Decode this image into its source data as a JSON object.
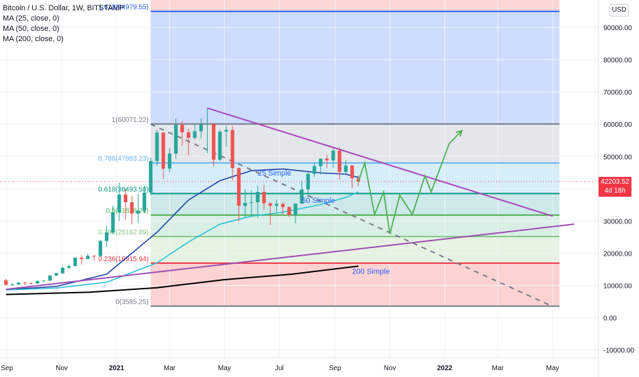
{
  "legend": {
    "symbol_line": "Bitcoin / U.S. Dollar, 1W, BITSTAMP",
    "ma1": "MA (25, close, 0)",
    "ma2": "MA (50, close, 0)",
    "ma3": "MA (200, close, 0)"
  },
  "currency_button": "USD",
  "last_price": {
    "value": "42203.52",
    "countdown": "4d 18h",
    "color": "#f23645"
  },
  "colors": {
    "up": "#26a69a",
    "down": "#ef5350",
    "ma25": "#1f3ea6",
    "ma50": "#2cc0d6",
    "ma200": "#000000",
    "trend_purple": "#ab47bc",
    "projection_green": "#4caf50",
    "zone_blue": "#d6e2fd",
    "zone_red": "#fcdcdc",
    "level_top_blue": "#2962ff"
  },
  "chart_data": {
    "type": "candlestick",
    "title": "Bitcoin / U.S. Dollar, 1W, BITSTAMP",
    "y_axis": {
      "ticks": [
        90000,
        80000,
        70000,
        60000,
        50000,
        40000,
        30000,
        20000,
        10000,
        0,
        -10000
      ],
      "tick_labels": [
        "90000.00",
        "80000.00",
        "70000.00",
        "60000.00",
        "50000.00",
        "40000.00",
        "30000.00",
        "20000.00",
        "10000.00",
        "0.00",
        "-10000.00"
      ]
    },
    "x_axis": {
      "labels": [
        "Sep",
        "Nov",
        "2021",
        "Mar",
        "May",
        "Jul",
        "Sep",
        "Nov",
        "2022",
        "Mar",
        "May"
      ],
      "dates": [
        "2020-09-01",
        "2020-11-01",
        "2021-01-01",
        "2021-03-01",
        "2021-05-01",
        "2021-07-01",
        "2021-09-01",
        "2021-11-01",
        "2022-01-01",
        "2022-03-01",
        "2022-05-01"
      ],
      "bold": [
        "2021",
        "2022"
      ]
    },
    "candles": [
      {
        "date": "2020-08-31",
        "open": 11600,
        "high": 12000,
        "low": 9900,
        "close": 10200
      },
      {
        "date": "2020-09-07",
        "open": 10200,
        "high": 10800,
        "low": 9900,
        "close": 10300
      },
      {
        "date": "2020-09-14",
        "open": 10300,
        "high": 11100,
        "low": 10200,
        "close": 10900
      },
      {
        "date": "2020-09-21",
        "open": 10900,
        "high": 11100,
        "low": 10100,
        "close": 10700
      },
      {
        "date": "2020-09-28",
        "open": 10700,
        "high": 11000,
        "low": 10400,
        "close": 10600
      },
      {
        "date": "2020-10-05",
        "open": 10600,
        "high": 11500,
        "low": 10500,
        "close": 11400
      },
      {
        "date": "2020-10-12",
        "open": 11400,
        "high": 11700,
        "low": 11200,
        "close": 11500
      },
      {
        "date": "2020-10-19",
        "open": 11500,
        "high": 13200,
        "low": 11400,
        "close": 13100
      },
      {
        "date": "2020-10-26",
        "open": 13100,
        "high": 14000,
        "low": 12900,
        "close": 13800
      },
      {
        "date": "2020-11-02",
        "open": 13800,
        "high": 15900,
        "low": 13500,
        "close": 15500
      },
      {
        "date": "2020-11-09",
        "open": 15500,
        "high": 16400,
        "low": 15000,
        "close": 16000
      },
      {
        "date": "2020-11-16",
        "open": 16000,
        "high": 18800,
        "low": 15900,
        "close": 18600
      },
      {
        "date": "2020-11-23",
        "open": 18600,
        "high": 19400,
        "low": 16500,
        "close": 18200
      },
      {
        "date": "2020-11-30",
        "open": 18200,
        "high": 19900,
        "low": 18000,
        "close": 19200
      },
      {
        "date": "2020-12-07",
        "open": 19200,
        "high": 19400,
        "low": 17600,
        "close": 19100
      },
      {
        "date": "2020-12-14",
        "open": 19100,
        "high": 24200,
        "low": 19000,
        "close": 23800
      },
      {
        "date": "2020-12-21",
        "open": 23800,
        "high": 28400,
        "low": 21900,
        "close": 26400
      },
      {
        "date": "2020-12-28",
        "open": 26400,
        "high": 34800,
        "low": 26100,
        "close": 32700
      },
      {
        "date": "2021-01-04",
        "open": 32700,
        "high": 41900,
        "low": 30000,
        "close": 38200
      },
      {
        "date": "2021-01-11",
        "open": 38200,
        "high": 40100,
        "low": 30300,
        "close": 35800
      },
      {
        "date": "2021-01-18",
        "open": 35800,
        "high": 37800,
        "low": 28900,
        "close": 32300
      },
      {
        "date": "2021-01-25",
        "open": 32300,
        "high": 38500,
        "low": 29300,
        "close": 33200
      },
      {
        "date": "2021-02-01",
        "open": 33200,
        "high": 40900,
        "low": 32400,
        "close": 38800
      },
      {
        "date": "2021-02-08",
        "open": 38800,
        "high": 49700,
        "low": 37900,
        "close": 48600
      },
      {
        "date": "2021-02-15",
        "open": 48600,
        "high": 58300,
        "low": 47000,
        "close": 57400
      },
      {
        "date": "2021-02-22",
        "open": 57400,
        "high": 57500,
        "low": 43000,
        "close": 46200
      },
      {
        "date": "2021-03-01",
        "open": 46200,
        "high": 52600,
        "low": 45000,
        "close": 50900
      },
      {
        "date": "2021-03-08",
        "open": 50900,
        "high": 61700,
        "low": 49300,
        "close": 59800
      },
      {
        "date": "2021-03-15",
        "open": 59800,
        "high": 61000,
        "low": 53300,
        "close": 57500
      },
      {
        "date": "2021-03-22",
        "open": 57500,
        "high": 58600,
        "low": 50400,
        "close": 55800
      },
      {
        "date": "2021-03-29",
        "open": 55800,
        "high": 60200,
        "low": 55300,
        "close": 57800
      },
      {
        "date": "2021-04-05",
        "open": 57800,
        "high": 61800,
        "low": 55500,
        "close": 60000
      },
      {
        "date": "2021-04-12",
        "open": 60000,
        "high": 64900,
        "low": 51000,
        "close": 60100
      },
      {
        "date": "2021-04-19",
        "open": 60100,
        "high": 60500,
        "low": 47000,
        "close": 49000
      },
      {
        "date": "2021-04-26",
        "open": 49000,
        "high": 58400,
        "low": 48500,
        "close": 57700
      },
      {
        "date": "2021-05-03",
        "open": 57700,
        "high": 59600,
        "low": 53000,
        "close": 58200
      },
      {
        "date": "2021-05-10",
        "open": 58200,
        "high": 59500,
        "low": 42600,
        "close": 46400
      },
      {
        "date": "2021-05-17",
        "open": 46400,
        "high": 46600,
        "low": 30000,
        "close": 34700
      },
      {
        "date": "2021-05-24",
        "open": 34700,
        "high": 40000,
        "low": 31200,
        "close": 35600
      },
      {
        "date": "2021-05-31",
        "open": 35600,
        "high": 39500,
        "low": 31300,
        "close": 35800
      },
      {
        "date": "2021-06-07",
        "open": 35800,
        "high": 40900,
        "low": 31000,
        "close": 39000
      },
      {
        "date": "2021-06-14",
        "open": 39000,
        "high": 41300,
        "low": 33400,
        "close": 35500
      },
      {
        "date": "2021-06-21",
        "open": 35500,
        "high": 35700,
        "low": 28800,
        "close": 34700
      },
      {
        "date": "2021-06-28",
        "open": 34700,
        "high": 36500,
        "low": 32700,
        "close": 35300
      },
      {
        "date": "2021-07-05",
        "open": 35300,
        "high": 35800,
        "low": 32100,
        "close": 34300
      },
      {
        "date": "2021-07-12",
        "open": 34300,
        "high": 34500,
        "low": 31200,
        "close": 31800
      },
      {
        "date": "2021-07-19",
        "open": 31800,
        "high": 35400,
        "low": 29300,
        "close": 35400
      },
      {
        "date": "2021-07-26",
        "open": 35400,
        "high": 42600,
        "low": 35300,
        "close": 39800
      },
      {
        "date": "2021-08-02",
        "open": 39800,
        "high": 45300,
        "low": 37500,
        "close": 44600
      },
      {
        "date": "2021-08-09",
        "open": 44600,
        "high": 48100,
        "low": 43700,
        "close": 47000
      },
      {
        "date": "2021-08-16",
        "open": 47000,
        "high": 49300,
        "low": 44400,
        "close": 49300
      },
      {
        "date": "2021-08-23",
        "open": 49300,
        "high": 50500,
        "low": 46400,
        "close": 48800
      },
      {
        "date": "2021-08-30",
        "open": 48800,
        "high": 52900,
        "low": 46500,
        "close": 51800
      },
      {
        "date": "2021-09-06",
        "open": 51800,
        "high": 52800,
        "low": 42800,
        "close": 45200
      },
      {
        "date": "2021-09-13",
        "open": 45200,
        "high": 48800,
        "low": 44700,
        "close": 47200
      },
      {
        "date": "2021-09-20",
        "open": 47200,
        "high": 47300,
        "low": 40100,
        "close": 43200
      },
      {
        "date": "2021-09-27",
        "open": 43200,
        "high": 44200,
        "low": 40800,
        "close": 42200
      }
    ],
    "moving_averages": [
      {
        "name": "25 Simple",
        "points": [
          [
            "2020-08-31",
            8700
          ],
          [
            "2020-10-26",
            9700
          ],
          [
            "2020-12-21",
            13500
          ],
          [
            "2021-02-15",
            26500
          ],
          [
            "2021-03-22",
            36500
          ],
          [
            "2021-04-26",
            42500
          ],
          [
            "2021-05-31",
            45600
          ],
          [
            "2021-07-05",
            46100
          ],
          [
            "2021-08-16",
            44900
          ],
          [
            "2021-09-13",
            44500
          ],
          [
            "2021-09-27",
            43500
          ]
        ]
      },
      {
        "name": "50 Simple",
        "points": [
          [
            "2020-08-31",
            8600
          ],
          [
            "2020-10-26",
            9200
          ],
          [
            "2020-12-21",
            11000
          ],
          [
            "2021-02-15",
            17000
          ],
          [
            "2021-03-22",
            23500
          ],
          [
            "2021-04-26",
            29000
          ],
          [
            "2021-05-31",
            31500
          ],
          [
            "2021-07-05",
            32700
          ],
          [
            "2021-08-16",
            35100
          ],
          [
            "2021-09-13",
            37300
          ],
          [
            "2021-09-27",
            39000
          ]
        ]
      },
      {
        "name": "200 Simple",
        "points": [
          [
            "2020-08-31",
            7200
          ],
          [
            "2020-12-01",
            7900
          ],
          [
            "2021-02-15",
            9300
          ],
          [
            "2021-05-01",
            11800
          ],
          [
            "2021-07-15",
            13500
          ],
          [
            "2021-09-27",
            16000
          ]
        ]
      }
    ],
    "fibonacci": [
      {
        "ratio": "1.618",
        "value": 94979.55,
        "label": "1.618(94979.55)"
      },
      {
        "ratio": "1",
        "value": 60071.22,
        "label": "1(60071.22)"
      },
      {
        "ratio": "0.786",
        "value": 47983.23,
        "label": "0.786(47983.23)"
      },
      {
        "ratio": "0.618",
        "value": 38493.58,
        "label": "0.618(38493.58)"
      },
      {
        "ratio": "0.5",
        "value": 31828.24,
        "label": "0.5(31828.24)"
      },
      {
        "ratio": "0.382",
        "value": 25162.89,
        "label": "0.382(25162.89)"
      },
      {
        "ratio": "0.236",
        "value": 16915.94,
        "label": "0.236(16915.94)"
      },
      {
        "ratio": "0",
        "value": 3585.25,
        "label": "0(3585.25)"
      }
    ],
    "annotations": {
      "ma_labels": [
        "25 Simple",
        "50 Simple",
        "200 Simple"
      ],
      "trendline_upper": [
        [
          "2021-04-12",
          65000
        ],
        [
          "2022-05-01",
          31500
        ]
      ],
      "trendline_lower": [
        [
          "2020-08-31",
          8800
        ],
        [
          "2022-05-25",
          29000
        ]
      ],
      "dashed_line": [
        [
          "2021-02-08",
          60000
        ],
        [
          "2022-05-01",
          3500
        ]
      ],
      "projection_path": [
        [
          "2021-09-27",
          42200
        ],
        [
          "2021-10-04",
          48000
        ],
        [
          "2021-10-15",
          32000
        ],
        [
          "2021-10-25",
          39000
        ],
        [
          "2021-11-01",
          26000
        ],
        [
          "2021-11-12",
          38000
        ],
        [
          "2021-11-26",
          32000
        ],
        [
          "2021-12-10",
          44000
        ],
        [
          "2021-12-17",
          39000
        ],
        [
          "2022-01-06",
          54000
        ],
        [
          "2022-01-20",
          58000
        ]
      ]
    },
    "last_value": 42203.52
  }
}
